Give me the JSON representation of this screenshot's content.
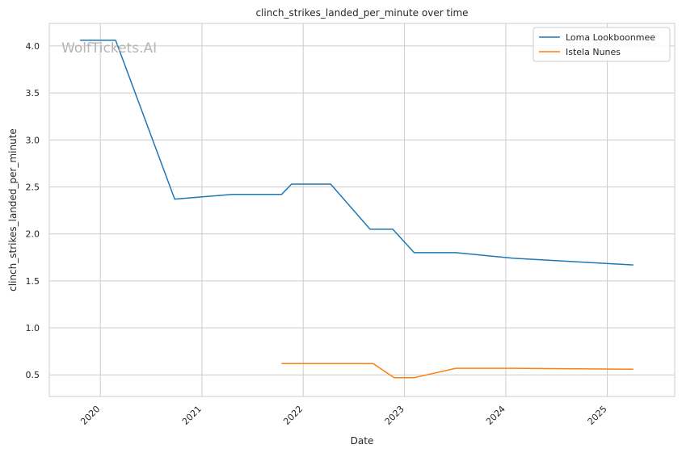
{
  "watermark": "WolfTickets.AI",
  "chart_data": {
    "type": "line",
    "title": "clinch_strikes_landed_per_minute over time",
    "xlabel": "Date",
    "ylabel": "clinch_strikes_landed_per_minute",
    "xlim": [
      "2019-07-01",
      "2025-09-01"
    ],
    "ylim": [
      0.27,
      4.24
    ],
    "x_ticks": [
      "2020-01-01",
      "2021-01-01",
      "2022-01-01",
      "2023-01-01",
      "2024-01-01",
      "2025-01-01"
    ],
    "x_tick_labels": [
      "2020",
      "2021",
      "2022",
      "2023",
      "2024",
      "2025"
    ],
    "y_ticks": [
      0.5,
      1.0,
      1.5,
      2.0,
      2.5,
      3.0,
      3.5,
      4.0
    ],
    "y_tick_labels": [
      "0.5",
      "1.0",
      "1.5",
      "2.0",
      "2.5",
      "3.0",
      "3.5",
      "4.0"
    ],
    "grid": true,
    "legend": "top-right",
    "series": [
      {
        "name": "Loma Lookboonmee",
        "color": "#1f77b4",
        "points": [
          [
            "2019-10-20",
            4.06
          ],
          [
            "2020-02-25",
            4.06
          ],
          [
            "2020-09-25",
            2.37
          ],
          [
            "2021-04-20",
            2.42
          ],
          [
            "2021-10-15",
            2.42
          ],
          [
            "2021-11-20",
            2.53
          ],
          [
            "2022-04-10",
            2.53
          ],
          [
            "2022-08-30",
            2.05
          ],
          [
            "2022-11-20",
            2.05
          ],
          [
            "2023-02-05",
            1.8
          ],
          [
            "2023-07-05",
            1.8
          ],
          [
            "2024-02-01",
            1.74
          ],
          [
            "2025-04-05",
            1.67
          ]
        ]
      },
      {
        "name": "Istela Nunes",
        "color": "#ff7f0e",
        "points": [
          [
            "2021-10-15",
            0.62
          ],
          [
            "2022-09-10",
            0.62
          ],
          [
            "2022-11-25",
            0.47
          ],
          [
            "2023-02-05",
            0.47
          ],
          [
            "2023-07-05",
            0.57
          ],
          [
            "2024-02-01",
            0.57
          ],
          [
            "2025-04-05",
            0.56
          ]
        ]
      }
    ]
  }
}
